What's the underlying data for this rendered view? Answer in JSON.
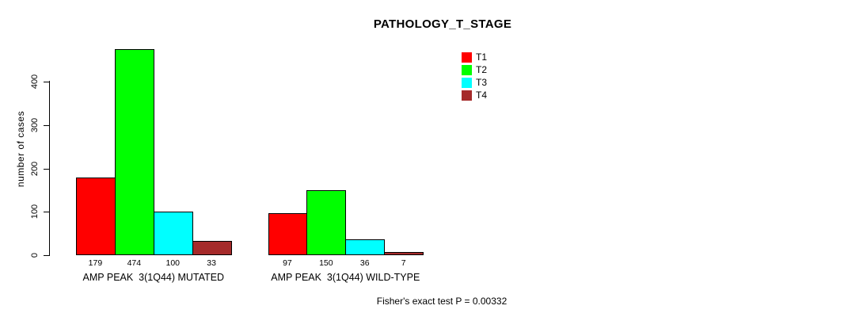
{
  "chart_data": {
    "type": "bar",
    "title": "PATHOLOGY_T_STAGE",
    "ylabel": "number of cases",
    "xlabel": "",
    "ylim": [
      0,
      400
    ],
    "yticks": [
      0,
      100,
      200,
      300,
      400
    ],
    "grid": false,
    "legend_position": "top-right",
    "categories": [
      "AMP PEAK  3(1Q44) MUTATED",
      "AMP PEAK  3(1Q44) WILD-TYPE"
    ],
    "series": [
      {
        "name": "T1",
        "color": "#ff0000",
        "values": [
          179,
          97
        ]
      },
      {
        "name": "T2",
        "color": "#00ff00",
        "values": [
          474,
          150
        ]
      },
      {
        "name": "T3",
        "color": "#00ffff",
        "values": [
          100,
          36
        ]
      },
      {
        "name": "T4",
        "color": "#a52a2a",
        "values": [
          33,
          7
        ]
      }
    ],
    "annotation": "Fisher's exact test P = 0.00332"
  }
}
